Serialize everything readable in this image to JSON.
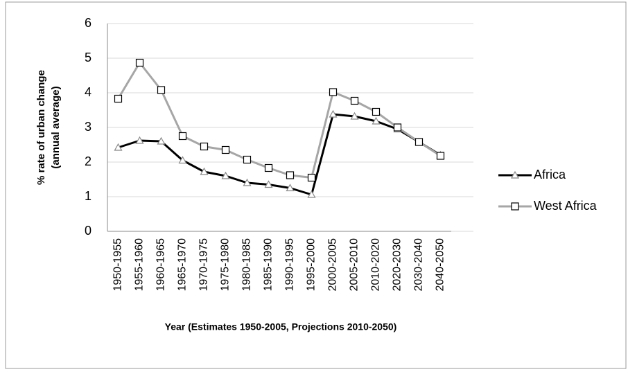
{
  "chart_data": {
    "type": "line",
    "ylabel": [
      "% rate of urban change",
      "(annual average)"
    ],
    "xlabel": "Year (Estimates 1950-2005, Projections 2010-2050)",
    "categories": [
      "1950-1955",
      "1955-1960",
      "1960-1965",
      "1965-1970",
      "1970-1975",
      "1975-1980",
      "1980-1985",
      "1985-1990",
      "1990-1995",
      "1995-2000",
      "2000-2005",
      "2005-2010",
      "2010-2020",
      "2020-2030",
      "2030-2040",
      "2040-2050"
    ],
    "series": [
      {
        "name": "Africa",
        "color": "#000000",
        "marker": "triangle",
        "values": [
          2.42,
          2.62,
          2.6,
          2.05,
          1.72,
          1.6,
          1.4,
          1.35,
          1.25,
          1.06,
          3.38,
          3.32,
          3.18,
          2.95,
          2.58,
          2.2
        ]
      },
      {
        "name": "West Africa",
        "color": "#a6a6a6",
        "marker": "square",
        "values": [
          3.83,
          4.87,
          4.08,
          2.75,
          2.45,
          2.35,
          2.07,
          1.83,
          1.62,
          1.55,
          4.02,
          3.77,
          3.45,
          3.0,
          2.58,
          2.18
        ]
      }
    ],
    "ylim": [
      0,
      6
    ],
    "yticks": [
      0,
      1,
      2,
      3,
      4,
      5,
      6
    ],
    "grid": true,
    "legend": "right"
  }
}
